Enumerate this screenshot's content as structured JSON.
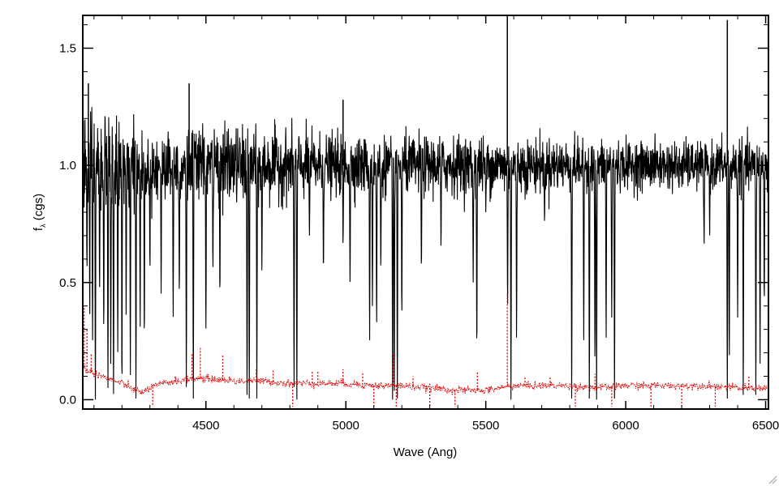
{
  "chart_data": {
    "type": "line",
    "xlabel": "Wave (Ang)",
    "ylabel": "f",
    "ylabel_subscript": "λ",
    "ylabel_suffix": " (cgs)",
    "xlim": [
      4060,
      6510
    ],
    "ylim": [
      -0.04,
      1.64
    ],
    "x_ticks": [
      4500,
      5000,
      5500,
      6000,
      6500
    ],
    "x_tick_labels": [
      "4500",
      "5000",
      "5500",
      "6000",
      "6500"
    ],
    "y_ticks": [
      0.0,
      0.5,
      1.0,
      1.5
    ],
    "y_tick_labels": [
      "0.0",
      "0.5",
      "1.0",
      "1.5"
    ],
    "grid": false,
    "series": [
      {
        "role": "spectrum",
        "color": "#000000",
        "style": "solid",
        "continuum": 1.0,
        "noise_sigma": [
          [
            4060,
            0.12
          ],
          [
            4300,
            0.07
          ],
          [
            4600,
            0.08
          ],
          [
            5000,
            0.06
          ],
          [
            5500,
            0.06
          ],
          [
            6000,
            0.05
          ],
          [
            6510,
            0.05
          ]
        ],
        "absorption_lines": [
          [
            4075,
            0.55
          ],
          [
            4085,
            0.35
          ],
          [
            4095,
            0.25
          ],
          [
            4105,
            0.0
          ],
          [
            4120,
            0.45
          ],
          [
            4135,
            0.3
          ],
          [
            4150,
            0.05
          ],
          [
            4160,
            0.15
          ],
          [
            4170,
            0.0
          ],
          [
            4185,
            0.2
          ],
          [
            4200,
            0.05
          ],
          [
            4215,
            0.35
          ],
          [
            4230,
            0.1
          ],
          [
            4250,
            0.0
          ],
          [
            4265,
            0.3
          ],
          [
            4280,
            0.25
          ],
          [
            4300,
            0.55
          ],
          [
            4340,
            0.45
          ],
          [
            4383,
            0.35
          ],
          [
            4405,
            0.45
          ],
          [
            4430,
            0.05
          ],
          [
            4455,
            0.0
          ],
          [
            4500,
            0.3
          ],
          [
            4525,
            0.55
          ],
          [
            4550,
            0.45
          ],
          [
            4647,
            0.0
          ],
          [
            4655,
            0.0
          ],
          [
            4682,
            0.0
          ],
          [
            4700,
            0.55
          ],
          [
            4815,
            0.05
          ],
          [
            4825,
            0.0
          ],
          [
            4870,
            0.7
          ],
          [
            4920,
            0.55
          ],
          [
            4990,
            0.65
          ],
          [
            5015,
            0.5
          ],
          [
            5085,
            0.25
          ],
          [
            5095,
            0.4
          ],
          [
            5110,
            0.3
          ],
          [
            5125,
            0.55
          ],
          [
            5167,
            0.0
          ],
          [
            5173,
            0.0
          ],
          [
            5184,
            0.0
          ],
          [
            5200,
            0.35
          ],
          [
            5270,
            0.55
          ],
          [
            5340,
            0.65
          ],
          [
            5455,
            0.5
          ],
          [
            5468,
            0.2
          ],
          [
            5500,
            0.8
          ],
          [
            5578,
            0.38
          ],
          [
            5590,
            0.0
          ],
          [
            5610,
            0.25
          ],
          [
            5710,
            0.75
          ],
          [
            5807,
            0.0
          ],
          [
            5850,
            0.25
          ],
          [
            5870,
            0.0
          ],
          [
            5890,
            0.15
          ],
          [
            5896,
            0.0
          ],
          [
            5930,
            0.25
          ],
          [
            5950,
            0.35
          ],
          [
            5960,
            0.0
          ],
          [
            6190,
            0.9
          ],
          [
            6280,
            0.65
          ],
          [
            6300,
            0.7
          ],
          [
            6363,
            0.0
          ],
          [
            6370,
            0.15
          ],
          [
            6400,
            0.35
          ],
          [
            6420,
            0.0
          ],
          [
            6465,
            0.0
          ],
          [
            6480,
            0.15
          ],
          [
            6495,
            0.4
          ]
        ],
        "emission_spikes": [
          [
            5577,
            1.64
          ],
          [
            6363,
            1.62
          ],
          [
            4990,
            1.28
          ],
          [
            4440,
            1.35
          ],
          [
            4080,
            1.35
          ]
        ]
      },
      {
        "role": "error",
        "color": "#dd0000",
        "style": "dotted",
        "points": [
          [
            4060,
            0.14
          ],
          [
            4080,
            0.12
          ],
          [
            4110,
            0.11
          ],
          [
            4150,
            0.09
          ],
          [
            4200,
            0.07
          ],
          [
            4250,
            0.04
          ],
          [
            4270,
            0.03
          ],
          [
            4300,
            0.05
          ],
          [
            4350,
            0.07
          ],
          [
            4400,
            0.08
          ],
          [
            4450,
            0.09
          ],
          [
            4500,
            0.09
          ],
          [
            4600,
            0.08
          ],
          [
            4700,
            0.08
          ],
          [
            4800,
            0.07
          ],
          [
            4900,
            0.07
          ],
          [
            5000,
            0.07
          ],
          [
            5100,
            0.06
          ],
          [
            5200,
            0.06
          ],
          [
            5300,
            0.05
          ],
          [
            5400,
            0.04
          ],
          [
            5450,
            0.04
          ],
          [
            5500,
            0.04
          ],
          [
            5550,
            0.05
          ],
          [
            5600,
            0.06
          ],
          [
            5700,
            0.06
          ],
          [
            5800,
            0.06
          ],
          [
            5900,
            0.05
          ],
          [
            6000,
            0.06
          ],
          [
            6100,
            0.06
          ],
          [
            6200,
            0.06
          ],
          [
            6300,
            0.06
          ],
          [
            6400,
            0.05
          ],
          [
            6510,
            0.05
          ]
        ],
        "spikes": [
          [
            4065,
            0.4
          ],
          [
            4075,
            0.3
          ],
          [
            4090,
            0.2
          ],
          [
            4310,
            -0.03
          ],
          [
            4390,
            0.1
          ],
          [
            4450,
            0.2
          ],
          [
            4480,
            0.22
          ],
          [
            4560,
            0.19
          ],
          [
            4680,
            0.13
          ],
          [
            4740,
            0.13
          ],
          [
            4810,
            -0.03
          ],
          [
            4880,
            0.12
          ],
          [
            4900,
            0.12
          ],
          [
            4990,
            0.13
          ],
          [
            5060,
            0.12
          ],
          [
            5100,
            -0.03
          ],
          [
            5170,
            0.2
          ],
          [
            5180,
            -0.03
          ],
          [
            5240,
            0.1
          ],
          [
            5300,
            -0.03
          ],
          [
            5390,
            -0.03
          ],
          [
            5470,
            0.12
          ],
          [
            5577,
            0.45
          ],
          [
            5640,
            0.1
          ],
          [
            5730,
            0.1
          ],
          [
            5820,
            -0.03
          ],
          [
            5890,
            0.11
          ],
          [
            5950,
            -0.03
          ],
          [
            6090,
            -0.03
          ],
          [
            6200,
            -0.03
          ],
          [
            6320,
            -0.03
          ],
          [
            6440,
            0.1
          ]
        ]
      }
    ]
  }
}
